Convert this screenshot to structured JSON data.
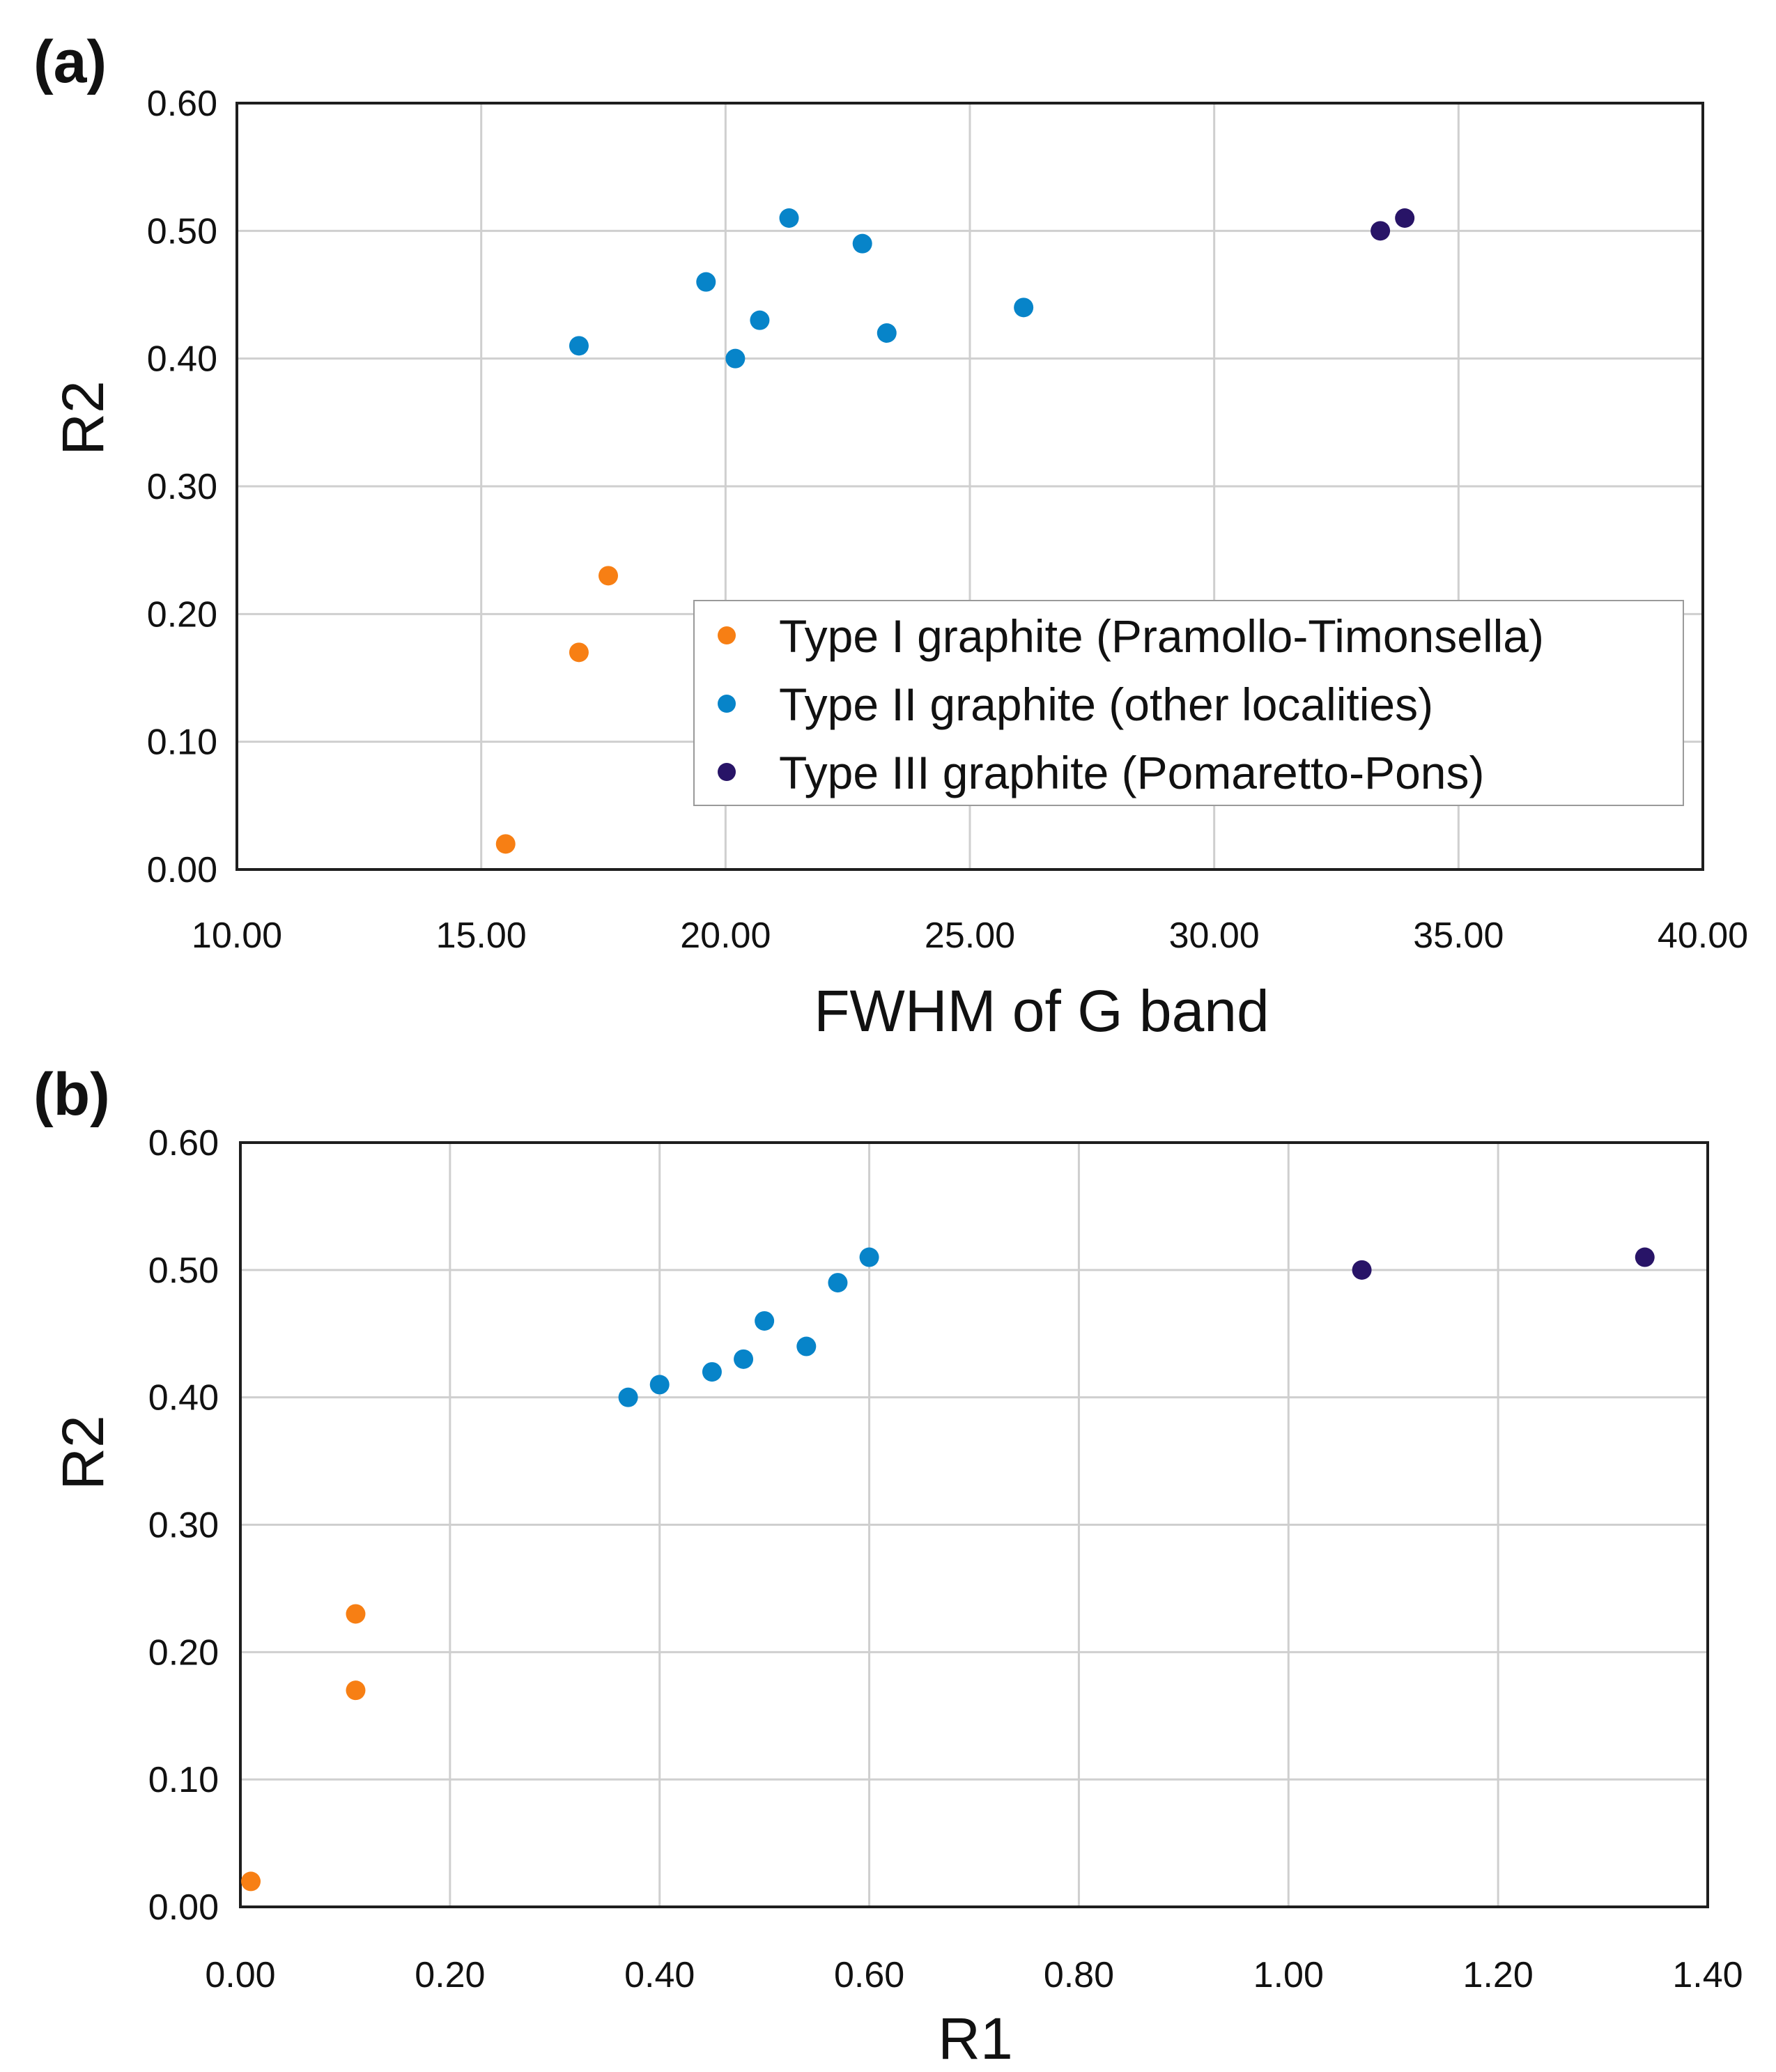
{
  "colors": {
    "type1": "#f77f14",
    "type2": "#0784c9",
    "type3": "#281467",
    "grid": "#cfcfcf",
    "frame": "#1e1e1e"
  },
  "series_names": [
    "Type I graphite (Pramollo-Timonsella)",
    "Type II graphite (other localities)",
    "Type III graphite (Pomaretto-Pons)"
  ],
  "chart_data": [
    {
      "type": "scatter",
      "panel_label": "(a)",
      "title": "",
      "xlabel": "FWHM of G band",
      "ylabel": "R2",
      "xlim": [
        10,
        40
      ],
      "ylim": [
        0,
        0.6
      ],
      "xticks": [
        "10.00",
        "15.00",
        "20.00",
        "25.00",
        "30.00",
        "35.00",
        "40.00"
      ],
      "yticks": [
        "0.00",
        "0.10",
        "0.20",
        "0.30",
        "0.40",
        "0.50",
        "0.60"
      ],
      "grid": true,
      "legend_position": "lower-right",
      "series": [
        {
          "name": "Type I graphite (Pramollo-Timonsella)",
          "color_key": "type1",
          "x": [
            15.5,
            17.0,
            17.6
          ],
          "y": [
            0.02,
            0.17,
            0.23
          ]
        },
        {
          "name": "Type II graphite (other localities)",
          "color_key": "type2",
          "x": [
            17.0,
            19.6,
            20.2,
            20.7,
            21.3,
            22.8,
            23.3,
            26.1
          ],
          "y": [
            0.41,
            0.46,
            0.4,
            0.43,
            0.51,
            0.49,
            0.42,
            0.44
          ]
        },
        {
          "name": "Type III graphite (Pomaretto-Pons)",
          "color_key": "type3",
          "x": [
            33.4,
            33.9
          ],
          "y": [
            0.5,
            0.51
          ]
        }
      ]
    },
    {
      "type": "scatter",
      "panel_label": "(b)",
      "title": "",
      "xlabel": "R1",
      "ylabel": "R2",
      "xlim": [
        0,
        1.4
      ],
      "ylim": [
        0,
        0.6
      ],
      "xticks": [
        "0.00",
        "0.20",
        "0.40",
        "0.60",
        "0.80",
        "1.00",
        "1.20",
        "1.40"
      ],
      "yticks": [
        "0.00",
        "0.10",
        "0.20",
        "0.30",
        "0.40",
        "0.50",
        "0.60"
      ],
      "grid": true,
      "legend_position": "none",
      "series": [
        {
          "name": "Type I graphite (Pramollo-Timonsella)",
          "color_key": "type1",
          "x": [
            0.01,
            0.11,
            0.11
          ],
          "y": [
            0.02,
            0.17,
            0.23
          ]
        },
        {
          "name": "Type II graphite (other localities)",
          "color_key": "type2",
          "x": [
            0.37,
            0.4,
            0.45,
            0.48,
            0.5,
            0.54,
            0.57,
            0.6
          ],
          "y": [
            0.4,
            0.41,
            0.42,
            0.43,
            0.46,
            0.44,
            0.49,
            0.51
          ]
        },
        {
          "name": "Type III graphite (Pomaretto-Pons)",
          "color_key": "type3",
          "x": [
            1.07,
            1.34
          ],
          "y": [
            0.5,
            0.51
          ]
        }
      ]
    }
  ]
}
